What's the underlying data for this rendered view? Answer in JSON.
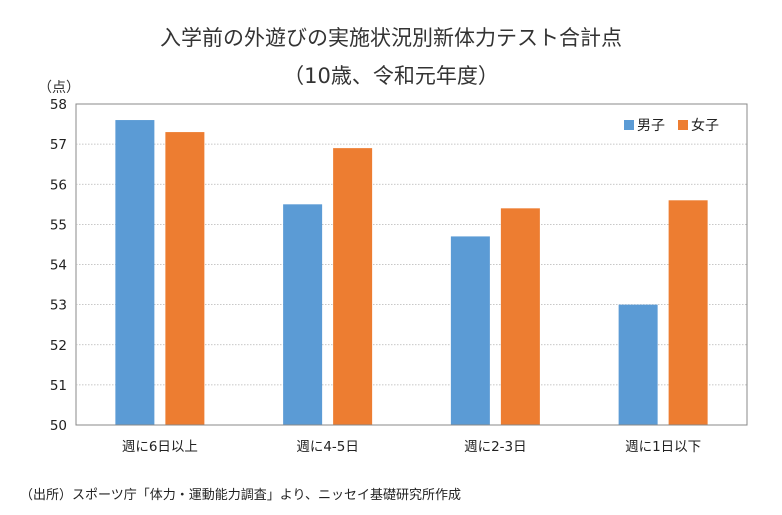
{
  "chart_data": {
    "type": "bar",
    "title": "入学前の外遊びの実施状況別新体力テスト合計点",
    "subtitle": "（10歳、令和元年度）",
    "ylabel": "（点）",
    "xlabel": "",
    "categories": [
      "週に6日以上",
      "週に4-5日",
      "週に2-3日",
      "週に1日以下"
    ],
    "series": [
      {
        "name": "男子",
        "color": "#5b9bd5",
        "values": [
          57.6,
          55.5,
          54.7,
          53.0
        ]
      },
      {
        "name": "女子",
        "color": "#ed7d31",
        "values": [
          57.3,
          56.9,
          55.4,
          55.6
        ]
      }
    ],
    "ylim": [
      50,
      58
    ],
    "yticks": [
      "50",
      "51",
      "52",
      "53",
      "54",
      "55",
      "56",
      "57",
      "58"
    ],
    "grid": true,
    "legend_position": "top-right"
  },
  "source": "（出所）スポーツ庁「体力・運動能力調査」より、ニッセイ基礎研究所作成"
}
